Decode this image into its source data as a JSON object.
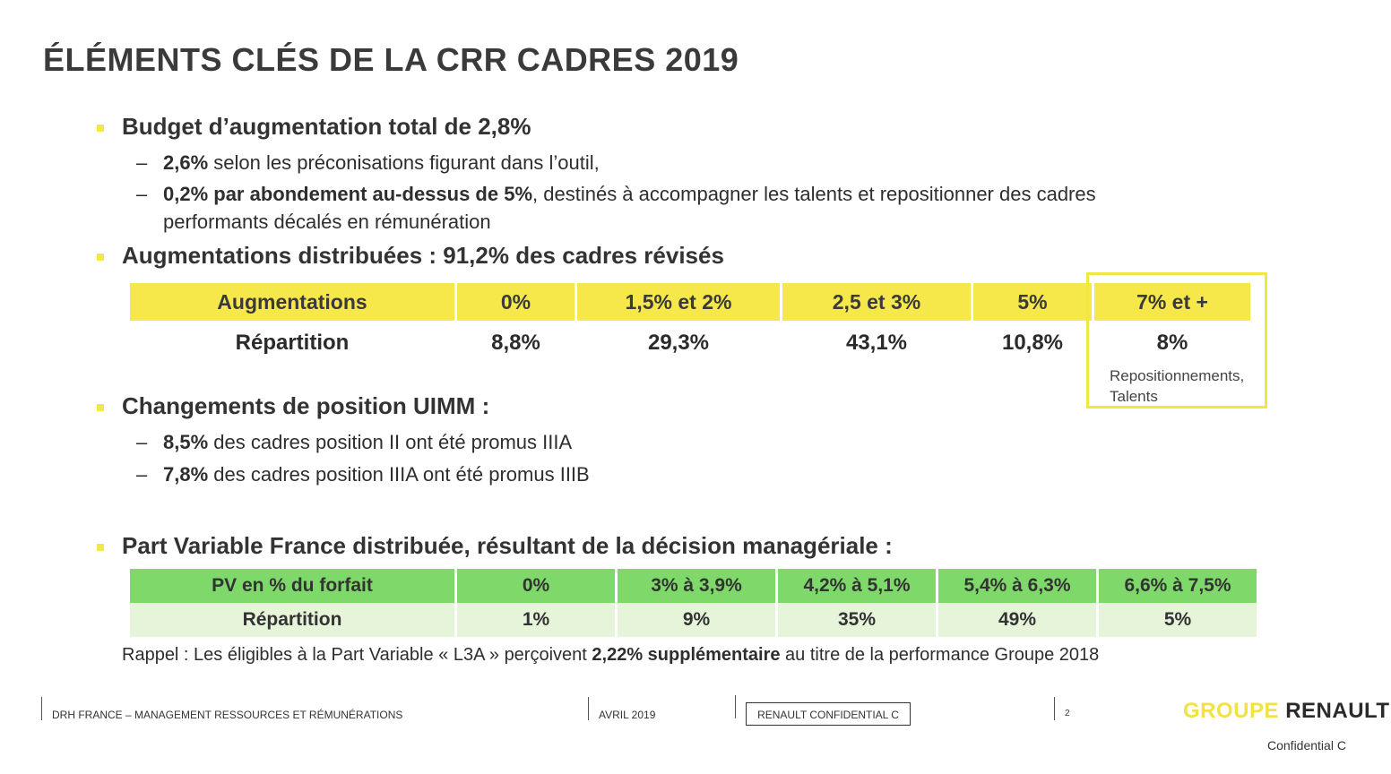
{
  "title": "ÉLÉMENTS CLÉS DE LA CRR CADRES 2019",
  "section1": {
    "heading": "Budget d’augmentation total de 2,8%",
    "items": [
      {
        "bold": "2,6%",
        "text": " selon les préconisations figurant dans l’outil,"
      },
      {
        "bold": "0,2% par abondement au-dessus de 5%",
        "text": ", destinés à accompagner les talents et repositionner des cadres",
        "continuation": "performants décalés en rémunération"
      }
    ]
  },
  "section2": {
    "heading": "Augmentations distribuées : 91,2% des cadres révisés",
    "table": {
      "header": [
        "Augmentations",
        "0%",
        "1,5% et 2%",
        "2,5 et 3%",
        "5%",
        "7% et +"
      ],
      "row": [
        "Répartition",
        "8,8%",
        "29,3%",
        "43,1%",
        "10,8%",
        "8%"
      ]
    },
    "note": "Repositionnements, Talents"
  },
  "section3": {
    "heading": "Changements de position UIMM :",
    "items": [
      {
        "bold": "8,5%",
        "text": " des cadres position II ont été promus IIIA"
      },
      {
        "bold": "7,8%",
        "text": " des cadres position IIIA ont été promus IIIB"
      }
    ]
  },
  "section4": {
    "heading": "Part Variable France distribuée, résultant de la décision managériale :",
    "table": {
      "header": [
        "PV en % du forfait",
        "0%",
        "3% à 3,9%",
        "4,2% à 5,1%",
        "5,4% à 6,3%",
        "6,6% à 7,5%"
      ],
      "row": [
        "Répartition",
        "1%",
        "9%",
        "35%",
        "49%",
        "5%"
      ]
    },
    "rappel": {
      "pre": "Rappel : Les éligibles à la Part Variable « L3A » perçoivent ",
      "bold": "2,22% supplémentaire",
      "post": " au titre de la performance Groupe 2018"
    }
  },
  "footer": {
    "department": "DRH FRANCE – MANAGEMENT RESSOURCES ET RÉMUNÉRATIONS",
    "date": "AVRIL 2019",
    "confidential_box": "RENAULT CONFIDENTIAL C",
    "page_number": "2",
    "brand_groupe": "GROUPE",
    "brand_renault": "RENAULT",
    "confidential": "Confidential C"
  },
  "colors": {
    "bullet": "#f3e84a",
    "yellow_header": "#f6e84a",
    "green_header": "#7fd86a",
    "green_row": "#e6f5da"
  }
}
